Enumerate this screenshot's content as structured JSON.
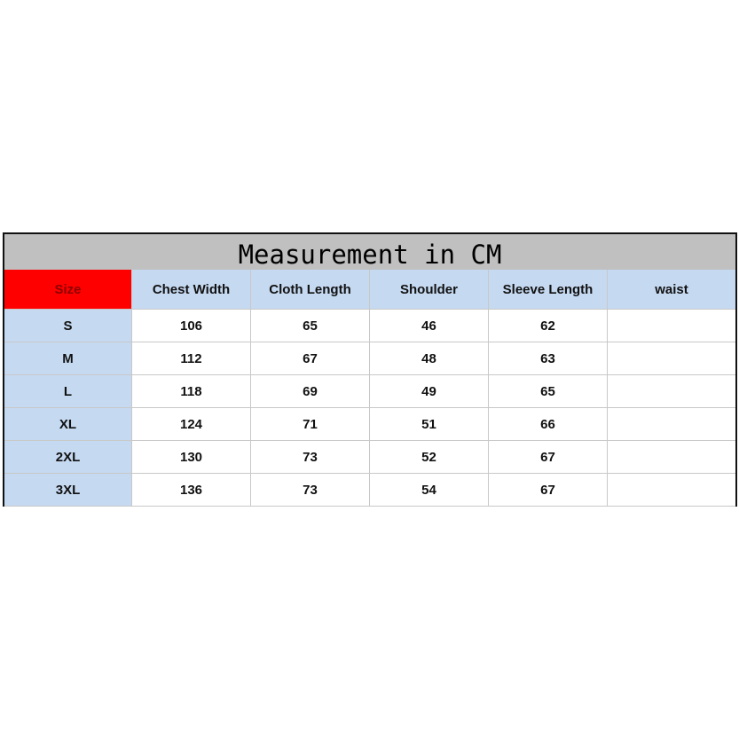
{
  "title": "Measurement in CM",
  "headers": [
    "Size",
    "Chest Width",
    "Cloth Length",
    "Shoulder",
    "Sleeve Length",
    "waist"
  ],
  "rows": [
    [
      "S",
      "106",
      "65",
      "46",
      "62",
      ""
    ],
    [
      "M",
      "112",
      "67",
      "48",
      "63",
      ""
    ],
    [
      "L",
      "118",
      "69",
      "49",
      "65",
      ""
    ],
    [
      "XL",
      "124",
      "71",
      "51",
      "66",
      ""
    ],
    [
      "2XL",
      "130",
      "73",
      "52",
      "67",
      ""
    ],
    [
      "3XL",
      "136",
      "73",
      "54",
      "67",
      ""
    ]
  ],
  "colors": {
    "title_bg": "#c0c0c0",
    "header_bg": "#c5d9f1",
    "size_header_bg": "#ff0000",
    "size_header_text": "#8b0000"
  }
}
